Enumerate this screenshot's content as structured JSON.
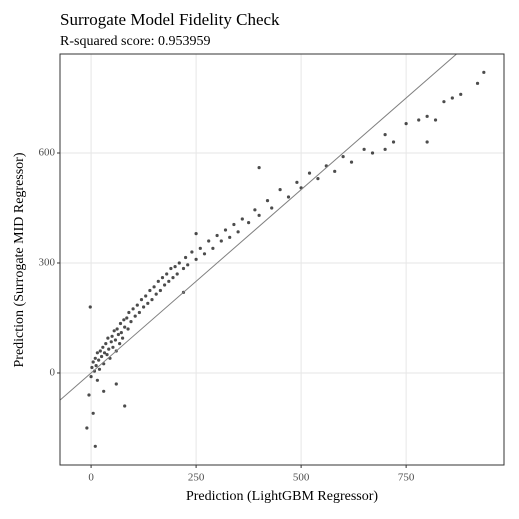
{
  "chart_data": {
    "type": "scatter",
    "title": "Surrogate Model Fidelity Check",
    "subtitle": "R-squared score: 0.953959",
    "x_label": "Prediction (LightGBM Regressor)",
    "y_label": "Prediction (Surrogate MID Regressor)",
    "color": "#000000",
    "reference_line": {
      "intercept": 0,
      "slope": 1,
      "color": "#808080"
    },
    "xlim": [
      -74,
      983
    ],
    "ylim": [
      -251,
      870
    ],
    "xticks": [
      0,
      250,
      500,
      750
    ],
    "yticks": [
      0,
      300,
      600
    ],
    "grid": true,
    "x": [
      0,
      2,
      5,
      8,
      10,
      12,
      15,
      18,
      20,
      22,
      25,
      28,
      30,
      32,
      35,
      38,
      40,
      42,
      45,
      48,
      50,
      52,
      55,
      58,
      60,
      62,
      65,
      68,
      70,
      72,
      75,
      78,
      80,
      85,
      88,
      90,
      95,
      100,
      105,
      110,
      115,
      120,
      125,
      130,
      135,
      140,
      145,
      150,
      155,
      160,
      165,
      170,
      175,
      180,
      185,
      190,
      195,
      200,
      205,
      210,
      220,
      225,
      230,
      240,
      250,
      260,
      270,
      280,
      290,
      300,
      310,
      320,
      330,
      340,
      350,
      360,
      375,
      390,
      400,
      420,
      430,
      450,
      470,
      490,
      500,
      520,
      540,
      560,
      580,
      600,
      620,
      650,
      670,
      700,
      720,
      750,
      780,
      800,
      820,
      840,
      860,
      880,
      920,
      935,
      -5,
      -10,
      5,
      10,
      -2,
      30,
      60,
      80,
      15,
      220,
      250,
      400,
      700,
      800
    ],
    "values": [
      -10,
      15,
      30,
      5,
      40,
      20,
      55,
      35,
      10,
      60,
      45,
      70,
      25,
      55,
      80,
      50,
      95,
      65,
      40,
      85,
      100,
      70,
      115,
      90,
      60,
      120,
      105,
      80,
      135,
      110,
      95,
      145,
      125,
      150,
      120,
      165,
      140,
      175,
      155,
      185,
      165,
      200,
      180,
      210,
      190,
      225,
      200,
      235,
      215,
      250,
      225,
      260,
      240,
      270,
      250,
      285,
      260,
      290,
      270,
      300,
      285,
      315,
      295,
      330,
      310,
      340,
      325,
      360,
      340,
      375,
      360,
      390,
      370,
      405,
      385,
      420,
      410,
      445,
      430,
      470,
      450,
      500,
      480,
      520,
      505,
      545,
      530,
      565,
      550,
      590,
      575,
      610,
      600,
      650,
      630,
      680,
      690,
      700,
      690,
      740,
      750,
      760,
      790,
      820,
      -60,
      -150,
      -110,
      -200,
      180,
      -50,
      -30,
      -90,
      -20,
      220,
      380,
      560,
      610,
      630
    ]
  }
}
